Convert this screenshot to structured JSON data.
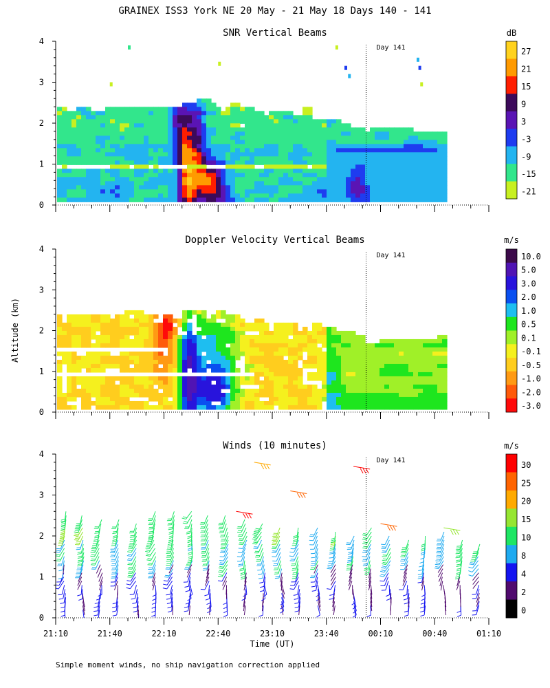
{
  "figure": {
    "title": "GRAINEX ISS3 York NE  20 May - 21 May 18 Days 140 - 141",
    "ylabel": "Altitude (km)",
    "xlabel": "Time (UT)",
    "note": "Simple moment winds, no ship navigation correction applied",
    "day_marker_label": "Day 141",
    "x_tick_labels": [
      "21:10",
      "21:40",
      "22:10",
      "22:40",
      "23:10",
      "23:40",
      "00:10",
      "00:40",
      "01:10"
    ],
    "y_tick_labels": [
      "0",
      "1",
      "2",
      "3",
      "4"
    ]
  },
  "chart_data": [
    {
      "type": "heatmap",
      "title": "SNR Vertical Beams",
      "xlabel": "Time (UT)",
      "ylabel": "Altitude (km)",
      "x_range": [
        "21:10",
        "01:10"
      ],
      "ylim": [
        0,
        4
      ],
      "data_extent": {
        "time_start": "21:10",
        "time_end": "00:45",
        "alt_top_km": 2.6
      },
      "colorbar": {
        "unit": "dB",
        "labels": [
          "27",
          "21",
          "15",
          "9",
          "3",
          "-3",
          "-9",
          "-15",
          "-21"
        ],
        "colors": [
          "#ffd21e",
          "#ff9a00",
          "#ff1e00",
          "#3c0a5a",
          "#5a14b4",
          "#1e3cf0",
          "#23b4f0",
          "#32e68c",
          "#c8f020"
        ]
      },
      "features": [
        {
          "time": "22:10",
          "alt_km": 2.6,
          "snr_db": 9
        },
        {
          "time": "22:20",
          "alt_km": 0.9,
          "snr_db": 9
        },
        {
          "time": "22:35",
          "alt_km": 0.5,
          "snr_db": 9
        },
        {
          "time": "23:55",
          "alt_km": 0.5,
          "snr_db": -3
        },
        {
          "time": "00:00",
          "alt_km": 1.9,
          "snr_db": -3
        }
      ]
    },
    {
      "type": "heatmap",
      "title": "Doppler Velocity Vertical Beams",
      "xlabel": "Time (UT)",
      "ylabel": "Altitude (km)",
      "x_range": [
        "21:10",
        "01:10"
      ],
      "ylim": [
        0,
        4
      ],
      "data_extent": {
        "time_start": "21:10",
        "time_end": "00:45",
        "alt_top_km": 2.6
      },
      "colorbar": {
        "unit": "m/s",
        "labels": [
          "10.0",
          "5.0",
          "3.0",
          "2.0",
          "1.0",
          "0.5",
          "0.1",
          "-0.1",
          "-0.5",
          "-1.0",
          "-2.0",
          "-3.0"
        ],
        "colors": [
          "#3c0a4a",
          "#5014b4",
          "#2814dc",
          "#0a50f0",
          "#1ebef0",
          "#1ee61e",
          "#a0f028",
          "#f5f01e",
          "#ffcd1e",
          "#ff9a14",
          "#ff5a0a",
          "#ff0a0a"
        ]
      },
      "features": [
        {
          "time": "22:10",
          "alt_km": 2.3,
          "velocity_ms": -3.0
        },
        {
          "time": "22:20",
          "alt_km": 0.5,
          "velocity_ms": 5.0
        },
        {
          "time": "22:40",
          "alt_km": 0.4,
          "velocity_ms": 3.0
        },
        {
          "time": "00:00",
          "alt_km": 0.5,
          "velocity_ms": 0.5
        }
      ]
    },
    {
      "type": "scatter",
      "title": "Winds (10 minutes)",
      "xlabel": "Time (UT)",
      "ylabel": "Altitude (km)",
      "x_range": [
        "21:10",
        "01:10"
      ],
      "ylim": [
        0,
        4
      ],
      "colorbar": {
        "unit": "m/s",
        "labels": [
          "30",
          "25",
          "20",
          "15",
          "10",
          "8",
          "4",
          "2",
          "0"
        ],
        "colors": [
          "#ff0000",
          "#ff6400",
          "#ffaa00",
          "#96e632",
          "#1ee664",
          "#1eaaf0",
          "#1414f0",
          "#500a6e",
          "#000000"
        ]
      },
      "profile_times": [
        "21:15",
        "21:25",
        "21:35",
        "21:45",
        "21:55",
        "22:05",
        "22:15",
        "22:25",
        "22:35",
        "22:45",
        "22:55",
        "23:05",
        "23:15",
        "23:25",
        "23:35",
        "23:45",
        "23:55",
        "00:05",
        "00:15",
        "00:25",
        "00:35",
        "00:45",
        "00:55",
        "01:05"
      ],
      "profile_top_km": [
        2.7,
        2.6,
        2.5,
        2.5,
        2.4,
        2.7,
        2.7,
        2.7,
        2.6,
        2.6,
        2.5,
        2.4,
        2.3,
        2.3,
        2.3,
        2.2,
        2.1,
        2.3,
        2.1,
        2.0,
        2.1,
        2.2,
        2.0,
        1.9
      ],
      "profile_bottom_km": [
        0.2,
        0.2,
        0.2,
        0.3,
        -0.2,
        0.2,
        0.3,
        0.3,
        0.3,
        0.3,
        0.3,
        0.3,
        0.3,
        0.3,
        0.3,
        0.3,
        0.2,
        0.3,
        0.3,
        0.3,
        0.3,
        0.3,
        0.3,
        0.3
      ],
      "upper_barbs": [
        {
          "time": "22:50",
          "alt_km": 2.6,
          "speed_ms": 30
        },
        {
          "time": "23:00",
          "alt_km": 3.8,
          "speed_ms": 20
        },
        {
          "time": "23:20",
          "alt_km": 3.1,
          "speed_ms": 25
        },
        {
          "time": "23:55",
          "alt_km": 3.7,
          "speed_ms": 30
        },
        {
          "time": "00:10",
          "alt_km": 2.3,
          "speed_ms": 25
        },
        {
          "time": "00:45",
          "alt_km": 2.2,
          "speed_ms": 15
        }
      ]
    }
  ]
}
